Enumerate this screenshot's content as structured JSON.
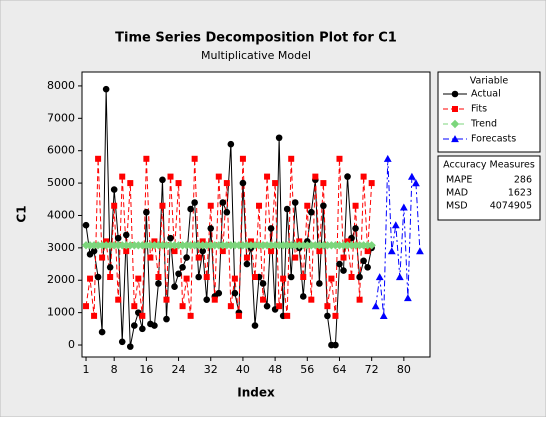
{
  "chart_data": {
    "type": "line",
    "title": "Time Series Decomposition Plot for C1",
    "subtitle": "Multiplicative Model",
    "xlabel": "Index",
    "ylabel": "C1",
    "x": [
      1,
      2,
      3,
      4,
      5,
      6,
      7,
      8,
      9,
      10,
      11,
      12,
      13,
      14,
      15,
      16,
      17,
      18,
      19,
      20,
      21,
      22,
      23,
      24,
      25,
      26,
      27,
      28,
      29,
      30,
      31,
      32,
      33,
      34,
      35,
      36,
      37,
      38,
      39,
      40,
      41,
      42,
      43,
      44,
      45,
      46,
      47,
      48,
      49,
      50,
      51,
      52,
      53,
      54,
      55,
      56,
      57,
      58,
      59,
      60,
      61,
      62,
      63,
      64,
      65,
      66,
      67,
      68,
      69,
      70,
      71,
      72,
      73,
      74,
      75,
      76,
      77,
      78,
      79,
      80,
      81,
      82,
      83,
      84
    ],
    "xlim": [
      0,
      86.5
    ],
    "xticks": [
      1,
      8,
      16,
      24,
      32,
      40,
      48,
      56,
      64,
      72,
      80
    ],
    "ylim": [
      -370,
      8430
    ],
    "yticks": [
      0,
      1000,
      2000,
      3000,
      4000,
      5000,
      6000,
      7000,
      8000
    ],
    "legend_title": "Variable",
    "series": [
      {
        "name": "Actual",
        "color": "#000000",
        "marker": "circle",
        "dash": "solid",
        "values": [
          3700,
          2800,
          2900,
          2100,
          400,
          7900,
          2400,
          4800,
          3300,
          100,
          3400,
          -50,
          600,
          1000,
          500,
          4100,
          650,
          600,
          1900,
          5100,
          800,
          3300,
          1800,
          2200,
          2400,
          2700,
          4200,
          4400,
          2100,
          2900,
          1400,
          3600,
          1500,
          1600,
          4400,
          4100,
          6200,
          1600,
          1000,
          5000,
          2500,
          3000,
          600,
          2100,
          1900,
          1200,
          3600,
          1100,
          6400,
          900,
          4200,
          2100,
          4400,
          3000,
          1500,
          3200,
          4100,
          5100,
          1900,
          4300,
          900,
          0,
          0,
          2500,
          2300,
          5200,
          3300,
          3600,
          2100,
          2600,
          2400,
          3000,
          null,
          null,
          null,
          null,
          null,
          null,
          null,
          null,
          null,
          null,
          null,
          null
        ]
      },
      {
        "name": "Fits",
        "color": "#ff0000",
        "marker": "square",
        "dash": "dashed",
        "values": [
          1200,
          2050,
          900,
          5750,
          2700,
          3200,
          2100,
          4300,
          1400,
          5200,
          2900,
          5000,
          1200,
          2050,
          900,
          5750,
          2700,
          3200,
          2100,
          4300,
          1400,
          5200,
          2900,
          5000,
          1200,
          2050,
          900,
          5750,
          2700,
          3200,
          2100,
          4300,
          1400,
          5200,
          2900,
          5000,
          1200,
          2050,
          900,
          5750,
          2700,
          3200,
          2100,
          4300,
          1400,
          5200,
          2900,
          5000,
          1200,
          2050,
          900,
          5750,
          2700,
          3200,
          2100,
          4300,
          1400,
          5200,
          2900,
          5000,
          1200,
          2050,
          900,
          5750,
          2700,
          3200,
          2100,
          4300,
          1400,
          5200,
          2900,
          5000,
          null,
          null,
          null,
          null,
          null,
          null,
          null,
          null,
          null,
          null,
          null,
          null
        ]
      },
      {
        "name": "Trend",
        "color": "#7cd67c",
        "marker": "diamond",
        "dash": "dashed",
        "values": [
          3080,
          3080,
          3080,
          3080,
          3080,
          3080,
          3080,
          3080,
          3080,
          3080,
          3080,
          3080,
          3080,
          3080,
          3080,
          3080,
          3080,
          3080,
          3080,
          3080,
          3080,
          3080,
          3080,
          3080,
          3080,
          3080,
          3080,
          3080,
          3080,
          3080,
          3080,
          3080,
          3080,
          3080,
          3080,
          3080,
          3080,
          3080,
          3080,
          3080,
          3080,
          3080,
          3080,
          3080,
          3080,
          3080,
          3080,
          3080,
          3080,
          3080,
          3080,
          3080,
          3080,
          3080,
          3080,
          3080,
          3080,
          3080,
          3080,
          3080,
          3080,
          3080,
          3080,
          3080,
          3080,
          3080,
          3080,
          3080,
          3080,
          3080,
          3080,
          3080,
          null,
          null,
          null,
          null,
          null,
          null,
          null,
          null,
          null,
          null,
          null,
          null
        ]
      },
      {
        "name": "Forecasts",
        "color": "#0000ff",
        "marker": "triangle",
        "dash": "dashdot",
        "values": [
          null,
          null,
          null,
          null,
          null,
          null,
          null,
          null,
          null,
          null,
          null,
          null,
          null,
          null,
          null,
          null,
          null,
          null,
          null,
          null,
          null,
          null,
          null,
          null,
          null,
          null,
          null,
          null,
          null,
          null,
          null,
          null,
          null,
          null,
          null,
          null,
          null,
          null,
          null,
          null,
          null,
          null,
          null,
          null,
          null,
          null,
          null,
          null,
          null,
          null,
          null,
          null,
          null,
          null,
          null,
          null,
          null,
          null,
          null,
          null,
          null,
          null,
          null,
          null,
          null,
          null,
          null,
          null,
          null,
          null,
          null,
          null,
          1200,
          2100,
          900,
          5750,
          2900,
          3700,
          2100,
          4250,
          1450,
          5200,
          5000,
          2900
        ]
      }
    ],
    "accuracy": {
      "title": "Accuracy Measures",
      "rows": [
        {
          "label": "MAPE",
          "value": 286
        },
        {
          "label": "MAD",
          "value": 1623
        },
        {
          "label": "MSD",
          "value": 4074905
        }
      ]
    }
  }
}
